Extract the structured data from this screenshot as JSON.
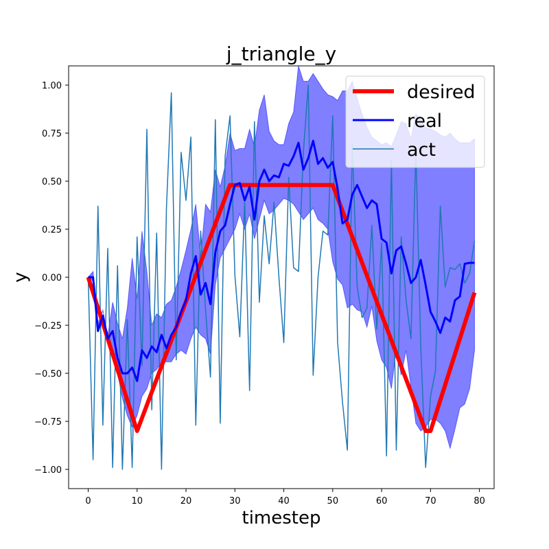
{
  "chart_data": {
    "type": "line",
    "title": "j_triangle_y",
    "xlabel": "timestep",
    "ylabel": "y",
    "xlim": [
      -4,
      83
    ],
    "ylim": [
      -1.1,
      1.1
    ],
    "xticks": [
      0,
      10,
      20,
      30,
      40,
      50,
      60,
      70,
      80
    ],
    "yticks": [
      -1.0,
      -0.75,
      -0.5,
      -0.25,
      0.0,
      0.25,
      0.5,
      0.75,
      1.0
    ],
    "ytick_labels": [
      "−1.00",
      "−0.75",
      "−0.50",
      "−0.25",
      "0.00",
      "0.25",
      "0.50",
      "0.75",
      "1.00"
    ],
    "grid": false,
    "legend_position": "top-right",
    "colors": {
      "desired": "#ff0000",
      "real": "#0000ff",
      "real_band": "#0000ff",
      "act": "#1f77b4"
    },
    "series": [
      {
        "name": "desired",
        "x": [
          0,
          10,
          29,
          50,
          69,
          70,
          79
        ],
        "y": [
          0.0,
          -0.8,
          0.48,
          0.48,
          -0.8,
          -0.8,
          -0.08
        ]
      },
      {
        "name": "real",
        "x": [
          0,
          1,
          2,
          3,
          4,
          5,
          6,
          7,
          8,
          9,
          10,
          11,
          12,
          13,
          14,
          15,
          16,
          17,
          18,
          19,
          20,
          21,
          22,
          23,
          24,
          25,
          26,
          27,
          28,
          29,
          30,
          31,
          32,
          33,
          34,
          35,
          36,
          37,
          38,
          39,
          40,
          41,
          42,
          43,
          44,
          45,
          46,
          47,
          48,
          49,
          50,
          51,
          52,
          53,
          54,
          55,
          56,
          57,
          58,
          59,
          60,
          61,
          62,
          63,
          64,
          65,
          66,
          67,
          68,
          69,
          70,
          71,
          72,
          73,
          74,
          75,
          76,
          77,
          78,
          79
        ],
        "y": [
          0.0,
          0.0,
          -0.28,
          -0.2,
          -0.32,
          -0.28,
          -0.42,
          -0.5,
          -0.5,
          -0.47,
          -0.54,
          -0.38,
          -0.42,
          -0.36,
          -0.39,
          -0.3,
          -0.37,
          -0.3,
          -0.26,
          -0.18,
          -0.12,
          0.02,
          0.11,
          -0.09,
          -0.03,
          -0.14,
          0.13,
          0.24,
          0.27,
          0.38,
          0.48,
          0.49,
          0.4,
          0.47,
          0.3,
          0.5,
          0.56,
          0.5,
          0.53,
          0.52,
          0.59,
          0.58,
          0.63,
          0.7,
          0.56,
          0.62,
          0.71,
          0.59,
          0.62,
          0.57,
          0.6,
          0.46,
          0.28,
          0.3,
          0.43,
          0.48,
          0.42,
          0.36,
          0.4,
          0.38,
          0.2,
          0.18,
          0.02,
          0.14,
          0.16,
          0.07,
          -0.03,
          0.0,
          0.09,
          -0.04,
          -0.18,
          -0.23,
          -0.29,
          -0.21,
          -0.23,
          -0.12,
          -0.1,
          0.07,
          0.075,
          0.075
        ]
      },
      {
        "name": "act",
        "x": [
          0,
          1,
          2,
          3,
          4,
          5,
          6,
          7,
          8,
          9,
          10,
          11,
          12,
          13,
          14,
          15,
          16,
          17,
          18,
          19,
          20,
          21,
          22,
          23,
          24,
          25,
          26,
          27,
          28,
          29,
          30,
          31,
          32,
          33,
          34,
          35,
          36,
          37,
          38,
          39,
          40,
          41,
          42,
          43,
          44,
          45,
          46,
          47,
          48,
          49,
          50,
          51,
          52,
          53,
          54,
          55,
          56,
          57,
          58,
          59,
          60,
          61,
          62,
          63,
          64,
          65,
          66,
          67,
          68,
          69,
          70,
          71,
          72,
          73,
          74,
          75,
          76,
          77,
          78,
          79
        ],
        "y": [
          0.0,
          -0.95,
          0.37,
          -0.77,
          0.15,
          -0.99,
          0.06,
          -1.0,
          -0.22,
          -0.99,
          0.21,
          -0.46,
          0.77,
          -0.69,
          0.23,
          -1.0,
          0.36,
          0.96,
          -0.43,
          0.65,
          0.4,
          0.73,
          -0.77,
          0.24,
          -0.17,
          -0.52,
          0.82,
          -0.76,
          0.63,
          0.84,
          0.01,
          -0.31,
          0.39,
          -0.59,
          0.81,
          -0.13,
          0.32,
          0.07,
          0.39,
          0.0,
          -0.34,
          0.52,
          0.05,
          0.03,
          0.65,
          1.0,
          -0.51,
          -0.0,
          0.24,
          0.22,
          0.84,
          -0.34,
          -0.65,
          -0.9,
          0.7,
          -0.05,
          -0.21,
          -0.16,
          0.27,
          -0.27,
          0.18,
          -0.93,
          0.61,
          -0.9,
          0.21,
          -0.12,
          -0.32,
          0.67,
          -0.36,
          -0.99,
          -0.62,
          -0.49,
          0.37,
          -0.05,
          0.05,
          0.04,
          0.07,
          -0.03,
          0.02,
          0.19
        ]
      }
    ],
    "real_band": {
      "lower": [
        0.0,
        -0.02,
        -0.27,
        -0.17,
        -0.34,
        -0.4,
        -0.5,
        -0.63,
        -0.72,
        -0.78,
        -0.72,
        -0.62,
        -0.58,
        -0.5,
        -0.48,
        -0.44,
        -0.44,
        -0.44,
        -0.4,
        -0.38,
        -0.4,
        -0.32,
        -0.26,
        -0.3,
        -0.32,
        -0.4,
        -0.04,
        0.1,
        0.15,
        0.2,
        0.25,
        0.33,
        0.25,
        0.33,
        0.2,
        0.3,
        0.4,
        0.33,
        0.35,
        0.38,
        0.41,
        0.4,
        0.38,
        0.34,
        0.3,
        0.33,
        0.36,
        0.3,
        0.28,
        0.25,
        0.08,
        -0.01,
        -0.04,
        -0.16,
        -0.14,
        -0.17,
        -0.18,
        -0.26,
        -0.15,
        -0.33,
        -0.43,
        -0.47,
        -0.58,
        -0.37,
        -0.51,
        -0.38,
        -0.57,
        -0.76,
        -0.8,
        -0.78,
        -0.74,
        -0.74,
        -0.76,
        -0.8,
        -0.89,
        -0.79,
        -0.68,
        -0.66,
        -0.58,
        -0.38
      ],
      "upper": [
        0.0,
        0.03,
        -0.24,
        -0.17,
        -0.31,
        -0.13,
        -0.24,
        -0.32,
        -0.16,
        0.1,
        -0.11,
        0.24,
        0.03,
        -0.25,
        -0.19,
        -0.21,
        -0.14,
        -0.12,
        -0.05,
        0.04,
        0.14,
        0.25,
        0.38,
        0.11,
        0.38,
        0.34,
        0.56,
        0.47,
        0.58,
        0.75,
        0.66,
        0.67,
        0.67,
        0.77,
        0.68,
        0.87,
        0.95,
        0.76,
        0.71,
        0.69,
        0.69,
        0.8,
        0.86,
        1.1,
        1.02,
        1.02,
        1.06,
        1.02,
        0.98,
        0.95,
        0.94,
        0.92,
        0.97,
        0.97,
        1.02,
        0.93,
        0.85,
        0.78,
        0.73,
        0.71,
        0.69,
        0.7,
        0.68,
        0.74,
        0.81,
        0.8,
        0.72,
        0.85,
        0.82,
        0.78,
        0.77,
        0.76,
        0.74,
        0.73,
        0.75,
        0.72,
        0.7,
        0.7,
        0.7,
        0.72
      ]
    }
  }
}
